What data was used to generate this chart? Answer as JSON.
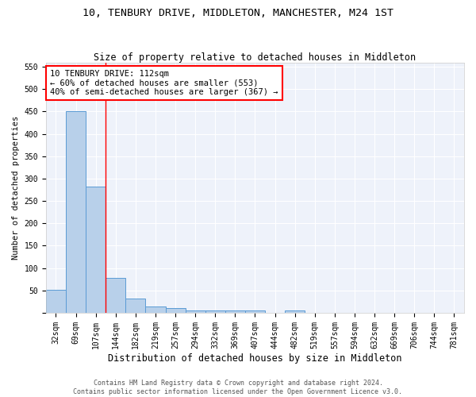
{
  "title": "10, TENBURY DRIVE, MIDDLETON, MANCHESTER, M24 1ST",
  "subtitle": "Size of property relative to detached houses in Middleton",
  "xlabel": "Distribution of detached houses by size in Middleton",
  "ylabel": "Number of detached properties",
  "bar_labels": [
    "32sqm",
    "69sqm",
    "107sqm",
    "144sqm",
    "182sqm",
    "219sqm",
    "257sqm",
    "294sqm",
    "332sqm",
    "369sqm",
    "407sqm",
    "444sqm",
    "482sqm",
    "519sqm",
    "557sqm",
    "594sqm",
    "632sqm",
    "669sqm",
    "706sqm",
    "744sqm",
    "781sqm"
  ],
  "bar_values": [
    52,
    450,
    283,
    78,
    32,
    15,
    10,
    6,
    5,
    5,
    5,
    0,
    6,
    0,
    0,
    0,
    0,
    0,
    0,
    0,
    0
  ],
  "bar_color": "#b8d0ea",
  "bar_edge_color": "#5b9bd5",
  "red_line_x": 2.5,
  "annotation_line1": "10 TENBURY DRIVE: 112sqm",
  "annotation_line2": "← 60% of detached houses are smaller (553)",
  "annotation_line3": "40% of semi-detached houses are larger (367) →",
  "ylim": [
    0,
    560
  ],
  "yticks": [
    0,
    50,
    100,
    150,
    200,
    250,
    300,
    350,
    400,
    450,
    500,
    550
  ],
  "footer_line1": "Contains HM Land Registry data © Crown copyright and database right 2024.",
  "footer_line2": "Contains public sector information licensed under the Open Government Licence v3.0.",
  "bg_color": "#eef2fa",
  "grid_color": "white",
  "title_fontsize": 9.5,
  "subtitle_fontsize": 8.5,
  "xlabel_fontsize": 8.5,
  "ylabel_fontsize": 7.5,
  "tick_fontsize": 7,
  "annotation_fontsize": 7.5,
  "footer_fontsize": 6
}
